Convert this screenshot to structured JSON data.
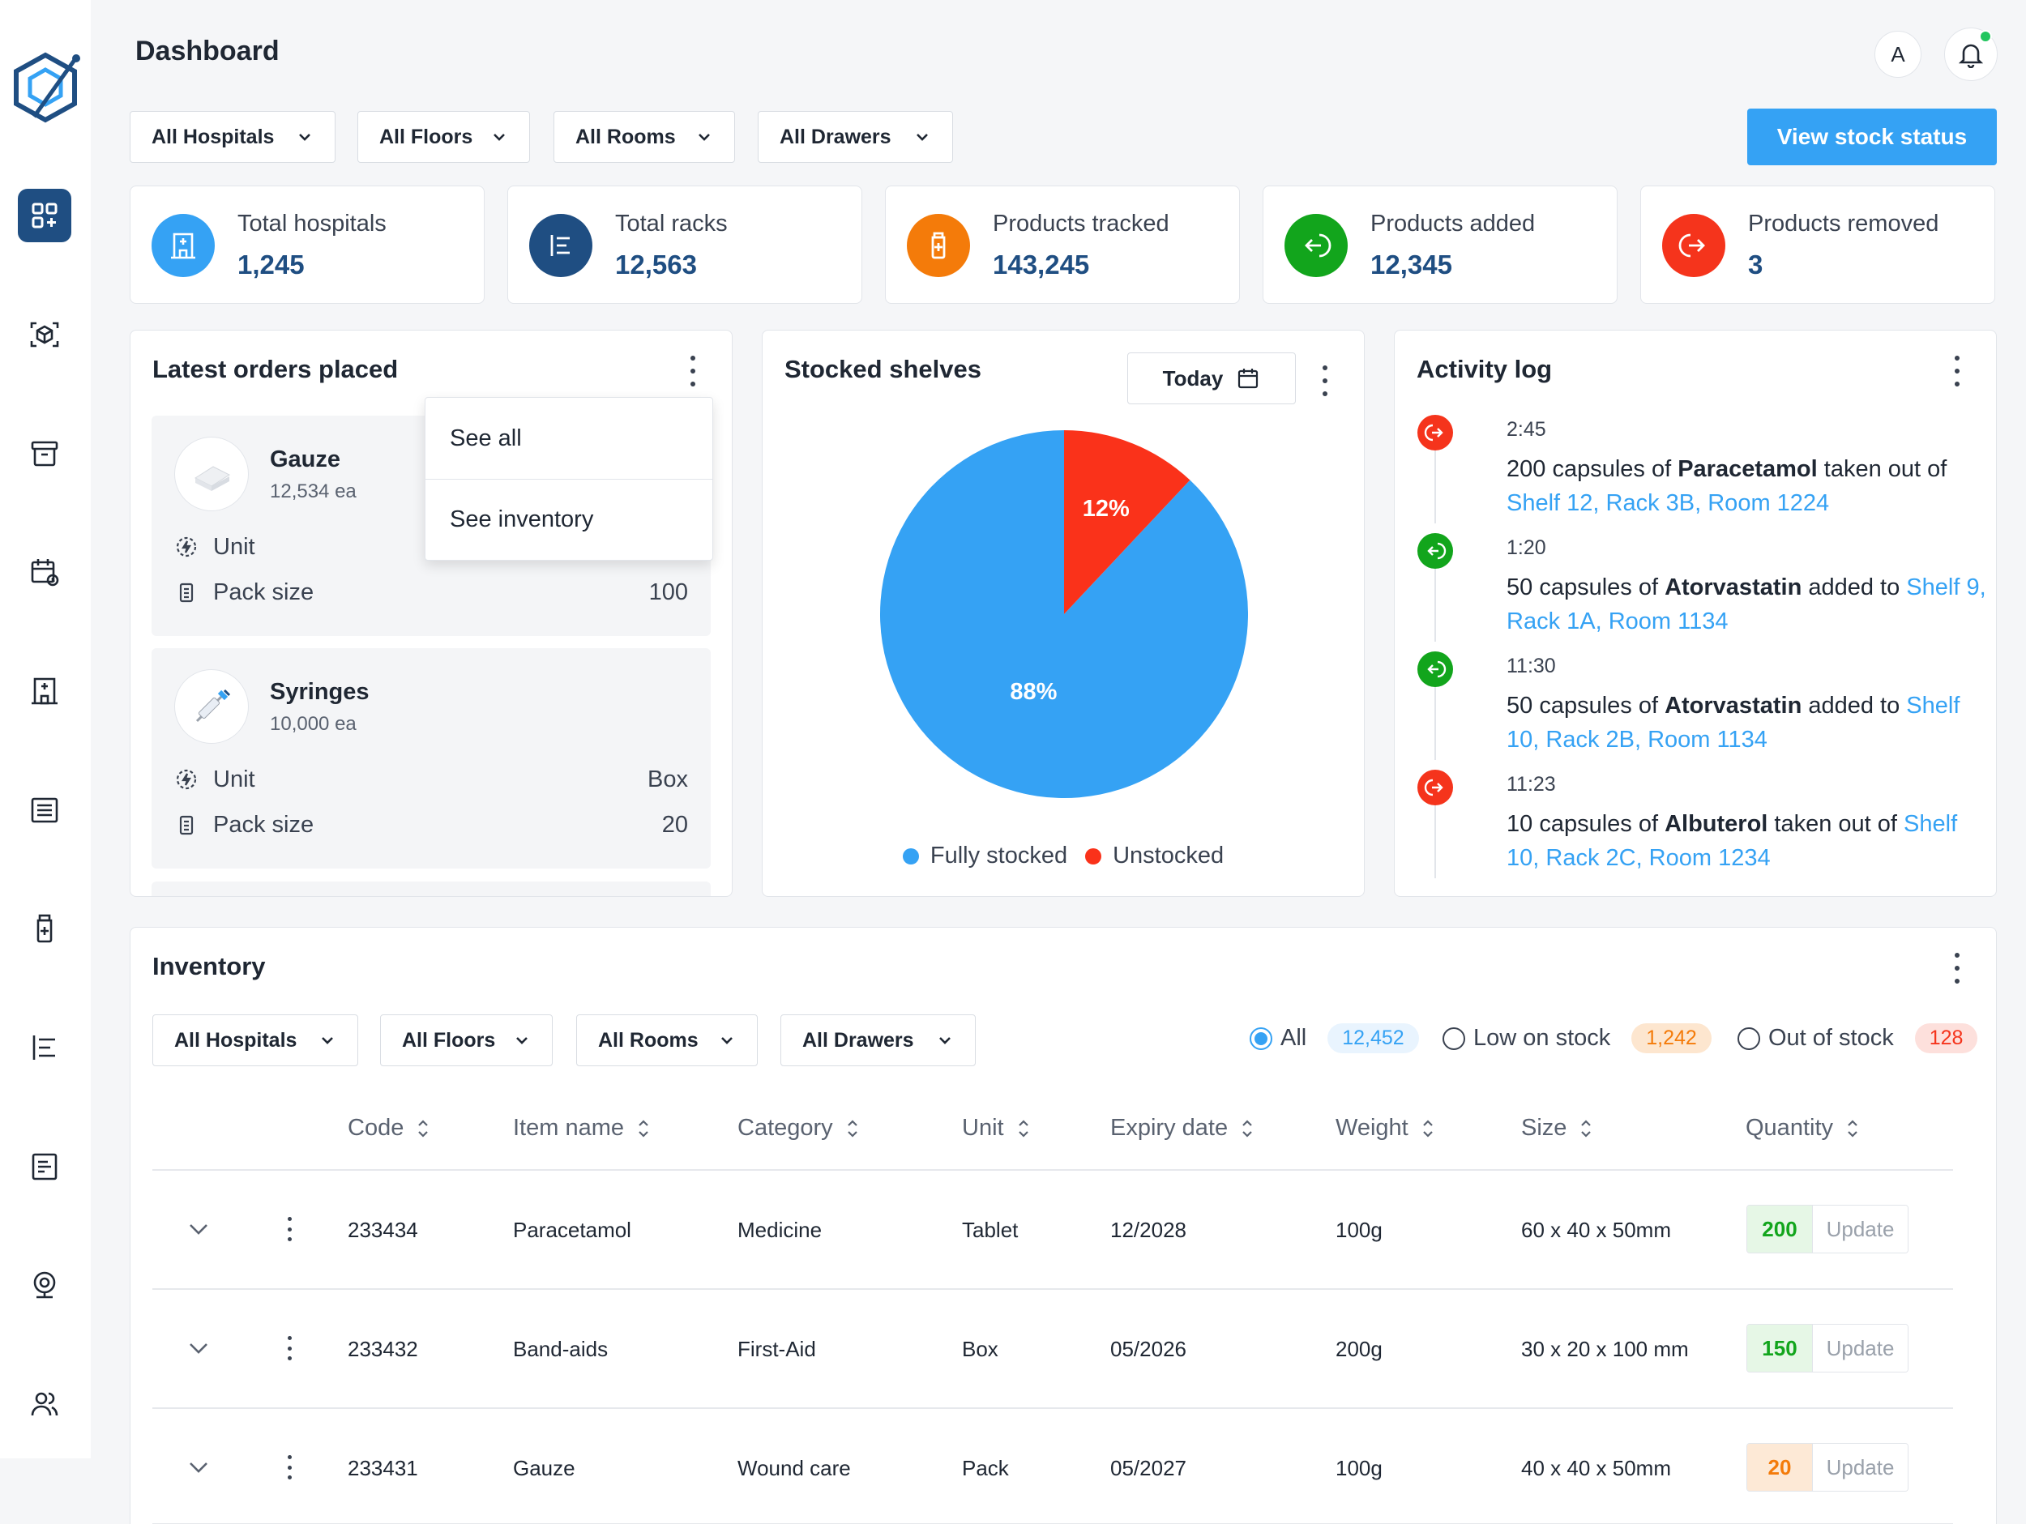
{
  "header": {
    "title": "Dashboard",
    "avatar_letter": "A"
  },
  "filters": {
    "hospitals": "All Hospitals",
    "floors": "All Floors",
    "rooms": "All Rooms",
    "drawers": "All Drawers"
  },
  "primary_action": "View stock status",
  "stats": [
    {
      "label": "Total hospitals",
      "value": "1,245",
      "color": "#35a2f4",
      "icon": "hospital-icon"
    },
    {
      "label": "Total racks",
      "value": "12,563",
      "color": "#1f4e82",
      "icon": "rack-icon"
    },
    {
      "label": "Products tracked",
      "value": "143,245",
      "color": "#f47b0a",
      "icon": "medicine-bottle-icon"
    },
    {
      "label": "Products added",
      "value": "12,345",
      "color": "#12a51c",
      "icon": "arrow-in-icon"
    },
    {
      "label": "Products removed",
      "value": "3",
      "color": "#f5341c",
      "icon": "arrow-out-icon"
    }
  ],
  "orders": {
    "title": "Latest orders placed",
    "menu": [
      "See all",
      "See inventory"
    ],
    "items": [
      {
        "name": "Gauze",
        "qty": "12,534 ea",
        "unit_label": "Unit",
        "unit_value": "",
        "pack_label": "Pack size",
        "pack_value": "100"
      },
      {
        "name": "Syringes",
        "qty": "10,000 ea",
        "unit_label": "Unit",
        "unit_value": "Box",
        "pack_label": "Pack size",
        "pack_value": "20"
      }
    ]
  },
  "shelves": {
    "title": "Stocked shelves",
    "period": "Today",
    "legend": [
      "Fully stocked",
      "Unstocked"
    ]
  },
  "chart_data": {
    "type": "pie",
    "categories": [
      "Fully stocked",
      "Unstocked"
    ],
    "values": [
      88,
      12
    ],
    "labels": [
      "88%",
      "12%"
    ],
    "colors": [
      "#35a2f4",
      "#fa321a"
    ],
    "legend_position": "bottom"
  },
  "activity": {
    "title": "Activity log",
    "items": [
      {
        "type": "removed",
        "time": "2:45",
        "pre": "200 capsules of ",
        "drug": "Paracetamol",
        "mid": " taken out of ",
        "loc": "Shelf 12, Rack 3B, Room 1224"
      },
      {
        "type": "added",
        "time": "1:20",
        "pre": "50 capsules of ",
        "drug": "Atorvastatin",
        "mid": " added to ",
        "loc": "Shelf 9, Rack 1A, Room 1134"
      },
      {
        "type": "added",
        "time": "11:30",
        "pre": "50 capsules of ",
        "drug": "Atorvastatin",
        "mid": " added to ",
        "loc": "Shelf 10, Rack 2B, Room 1134"
      },
      {
        "type": "removed",
        "time": "11:23",
        "pre": "10 capsules of ",
        "drug": "Albuterol",
        "mid": " taken out of ",
        "loc": "Shelf 10, Rack 2C, Room 1234"
      }
    ]
  },
  "inventory": {
    "title": "Inventory",
    "tabs": [
      {
        "label": "All",
        "count": "12,452"
      },
      {
        "label": "Low on stock",
        "count": "1,242"
      },
      {
        "label": "Out of stock",
        "count": "128"
      }
    ],
    "columns": [
      "Code",
      "Item name",
      "Category",
      "Unit",
      "Expiry date",
      "Weight",
      "Size",
      "Quantity"
    ],
    "update_label": "Update",
    "rows": [
      {
        "code": "233434",
        "name": "Paracetamol",
        "category": "Medicine",
        "unit": "Tablet",
        "expiry": "12/2028",
        "weight": "100g",
        "size": "60 x 40 x 50mm",
        "qty": "200",
        "status": "ok"
      },
      {
        "code": "233432",
        "name": "Band-aids",
        "category": "First-Aid",
        "unit": "Box",
        "expiry": "05/2026",
        "weight": "200g",
        "size": "30 x 20 x 100 mm",
        "qty": "150",
        "status": "ok"
      },
      {
        "code": "233431",
        "name": "Gauze",
        "category": "Wound care",
        "unit": "Pack",
        "expiry": "05/2027",
        "weight": "100g",
        "size": "40 x 40 x 50mm",
        "qty": "20",
        "status": "low"
      }
    ]
  }
}
